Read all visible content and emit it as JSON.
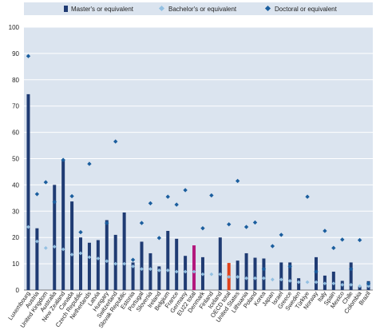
{
  "chart_data": {
    "type": "bar",
    "categories": [
      "Luxembourg",
      "Austria",
      "United Kingdom",
      "Australia",
      "New Zealand",
      "Canada",
      "Czech Republic",
      "Netherlands",
      "Latvia",
      "Hungary",
      "Switzerland",
      "Slovak Republic",
      "Estonia",
      "Portugal",
      "Slovenia",
      "Ireland",
      "Belgium",
      "France",
      "Germany",
      "EU22 total",
      "Denmark",
      "Finland",
      "Iceland",
      "OECD total",
      "United States",
      "Lithuania",
      "Poland",
      "Korea",
      "Japan",
      "Israel",
      "Greece",
      "Sweden",
      "Türkiye",
      "Norway",
      "Italy",
      "Spain",
      "Mexico",
      "Chile",
      "Colombia",
      "Brazil"
    ],
    "highlight_colors": {
      "EU22 total": "#b3177d",
      "OECD total": "#e2421c"
    },
    "series": [
      {
        "name": "Master's or equivalent",
        "kind": "bar",
        "values": [
          74.5,
          23.5,
          null,
          40,
          49.7,
          33.7,
          20,
          18,
          19,
          26.6,
          21,
          29.5,
          10.5,
          18.4,
          14,
          9,
          22.5,
          19.5,
          13,
          17,
          12.5,
          null,
          20,
          10.3,
          11.2,
          14,
          12.3,
          12,
          null,
          10.5,
          10.5,
          4.5,
          null,
          12.5,
          5.5,
          7,
          3.5,
          10.5,
          1.5,
          3.4
        ]
      },
      {
        "name": "Bachelor's or equivalent",
        "kind": "marker",
        "values": [
          24,
          18.5,
          16,
          16.5,
          15.5,
          13.5,
          14,
          12.5,
          12,
          11,
          10,
          10,
          9,
          8,
          8,
          7.5,
          7.5,
          7,
          7,
          7,
          6,
          6,
          6,
          5,
          5,
          4.5,
          4.5,
          4.5,
          4,
          4,
          3.5,
          3,
          3,
          3,
          2.5,
          2.5,
          2,
          2,
          1.5,
          1.5
        ]
      },
      {
        "name": "Doctoral or equivalent",
        "kind": "marker",
        "values": [
          89,
          36.5,
          41,
          33.5,
          49.5,
          35.7,
          22,
          48,
          null,
          25.5,
          56.5,
          null,
          11.5,
          25.5,
          33,
          19.8,
          35.5,
          32.5,
          38,
          null,
          23.5,
          36,
          null,
          25,
          41.5,
          24,
          25.7,
          8,
          16.7,
          21,
          9,
          null,
          35.5,
          7,
          22.5,
          16,
          19.2,
          8,
          19,
          2.5
        ]
      }
    ],
    "y_ticks": [
      "0",
      "10",
      "20",
      "30",
      "40",
      "50",
      "60",
      "70",
      "80",
      "90",
      "100"
    ],
    "ylim": [
      0,
      100
    ],
    "colors": {
      "bar": "#1f3b73",
      "bachelor_marker": "#93c0e2",
      "doctoral_marker": "#1b5e9e",
      "plot_background": "#dbe4ef"
    },
    "grid": true,
    "legend_position": "top"
  }
}
